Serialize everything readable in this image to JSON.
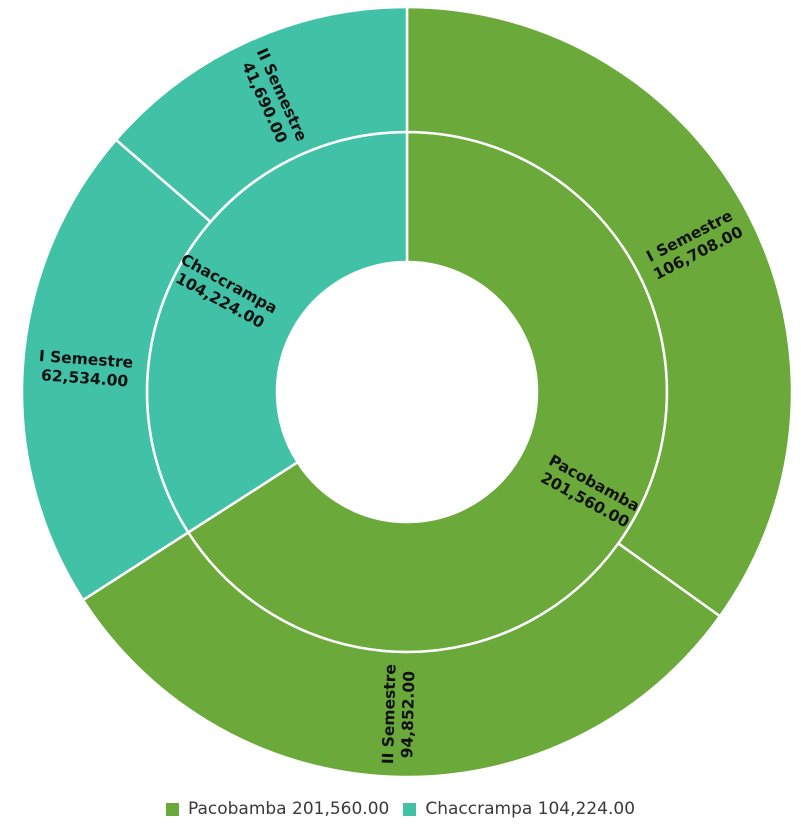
{
  "chart_data": {
    "type": "sunburst",
    "title": "",
    "colors": {
      "Pacobamba": "#6aa93a",
      "Chaccrampa": "#41c2a6",
      "separator": "#ffffff"
    },
    "inner_ring": [
      {
        "name": "Pacobamba",
        "value": 201560.0,
        "label": "201,560.00"
      },
      {
        "name": "Chaccrampa",
        "value": 104224.0,
        "label": "104,224.00"
      }
    ],
    "outer_ring": [
      {
        "parent": "Pacobamba",
        "name": "I Semestre",
        "value": 106708.0,
        "label": "106,708.00"
      },
      {
        "parent": "Pacobamba",
        "name": "II Semestre",
        "value": 94852.0,
        "label": "94,852.00"
      },
      {
        "parent": "Chaccrampa",
        "name": "I Semestre",
        "value": 62534.0,
        "label": "62,534.00"
      },
      {
        "parent": "Chaccrampa",
        "name": "II Semestre",
        "value": 41690.0,
        "label": "41,690.00"
      }
    ],
    "legend": {
      "placement": "bottom",
      "entries": [
        {
          "series": "Pacobamba",
          "text": "Pacobamba 201,560.00"
        },
        {
          "series": "Chaccrampa",
          "text": "Chaccrampa 104,224.00"
        }
      ]
    }
  }
}
